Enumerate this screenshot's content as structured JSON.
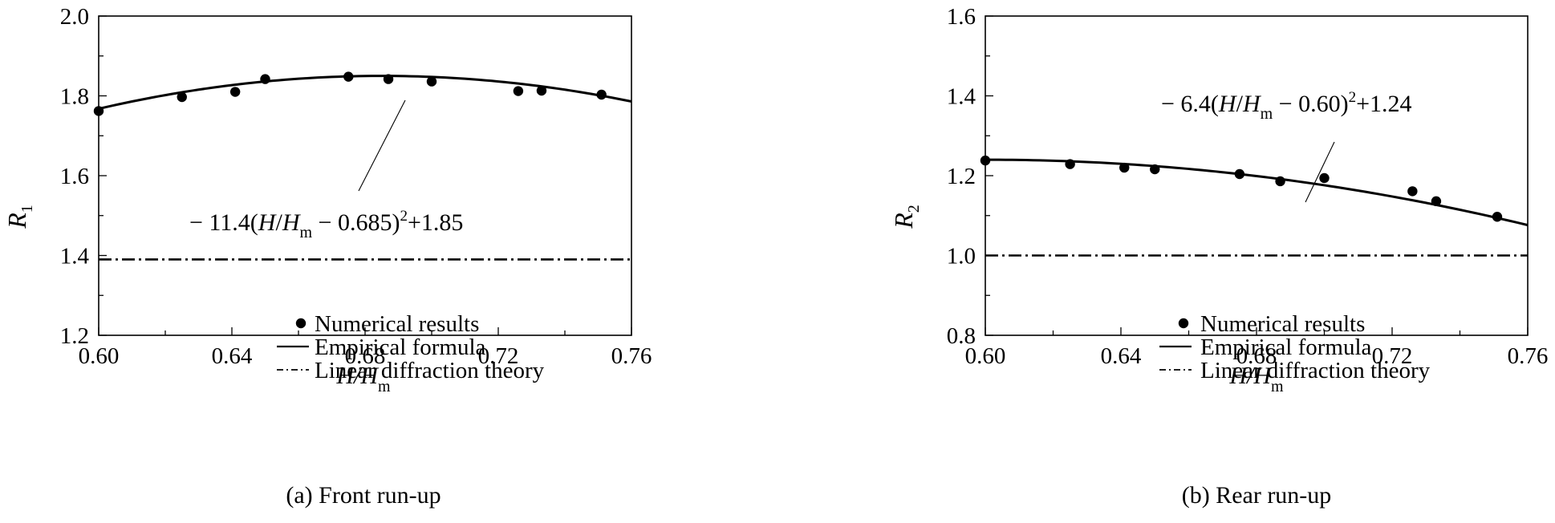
{
  "chart_data": [
    {
      "type": "scatter",
      "panel_caption": "(a) Front run-up",
      "ylabel_main": "R",
      "ylabel_sub": "1",
      "xlabel_main": "H/H",
      "xlabel_sub": "m",
      "xlim": [
        0.6,
        0.76
      ],
      "ylim": [
        1.2,
        2.0
      ],
      "x_ticks": [
        0.6,
        0.64,
        0.68,
        0.72,
        0.76
      ],
      "x_tick_labels": [
        "0.60",
        "0.64",
        "0.68",
        "0.72",
        "0.76"
      ],
      "y_ticks": [
        1.2,
        1.4,
        1.6,
        1.8,
        2.0
      ],
      "y_tick_labels": [
        "1.2",
        "1.4",
        "1.6",
        "1.8",
        "2.0"
      ],
      "points": {
        "name": "Numerical results",
        "x": [
          0.6,
          0.625,
          0.641,
          0.65,
          0.675,
          0.687,
          0.7,
          0.726,
          0.733,
          0.751
        ],
        "y": [
          1.762,
          1.797,
          1.81,
          1.842,
          1.848,
          1.842,
          1.836,
          1.812,
          1.813,
          1.803
        ]
      },
      "formula": {
        "name": "Empirical formula",
        "a": -11.4,
        "x0": 0.685,
        "c": 1.85
      },
      "theory": {
        "name": "Linear diffraction theory",
        "y": 1.39
      },
      "annotation": {
        "prefix": "− 11.4(",
        "h": "H",
        "slash": "/",
        "hm": "H",
        "sub": "m",
        "mid": " − 0.685)",
        "sup": "2",
        "suffix": "+1.85"
      },
      "legend": {
        "position": "bottom-right",
        "labels": [
          "Numerical results",
          "Empirical formula",
          "Linear diffraction theory"
        ]
      }
    },
    {
      "type": "scatter",
      "panel_caption": "(b) Rear run-up",
      "ylabel_main": "R",
      "ylabel_sub": "2",
      "xlabel_main": "H/H",
      "xlabel_sub": "m",
      "xlim": [
        0.6,
        0.76
      ],
      "ylim": [
        0.8,
        1.6
      ],
      "x_ticks": [
        0.6,
        0.64,
        0.68,
        0.72,
        0.76
      ],
      "x_tick_labels": [
        "0.60",
        "0.64",
        "0.68",
        "0.72",
        "0.76"
      ],
      "y_ticks": [
        0.8,
        1.0,
        1.2,
        1.4,
        1.6
      ],
      "y_tick_labels": [
        "0.8",
        "1.0",
        "1.2",
        "1.4",
        "1.6"
      ],
      "points": {
        "name": "Numerical results",
        "x": [
          0.6,
          0.625,
          0.641,
          0.65,
          0.675,
          0.687,
          0.7,
          0.726,
          0.733,
          0.751
        ],
        "y": [
          1.238,
          1.229,
          1.22,
          1.216,
          1.204,
          1.186,
          1.194,
          1.161,
          1.136,
          1.097
        ]
      },
      "formula": {
        "name": "Empirical formula",
        "a": -6.4,
        "x0": 0.6,
        "c": 1.24
      },
      "theory": {
        "name": "Linear diffraction theory",
        "y": 1.0
      },
      "annotation": {
        "prefix": "− 6.4(",
        "h": "H",
        "slash": "/",
        "hm": "H",
        "sub": "m",
        "mid": " − 0.60)",
        "sup": "2",
        "suffix": "+1.24"
      },
      "legend": {
        "position": "bottom-right",
        "labels": [
          "Numerical results",
          "Empirical formula",
          "Linear diffraction theory"
        ]
      }
    }
  ]
}
